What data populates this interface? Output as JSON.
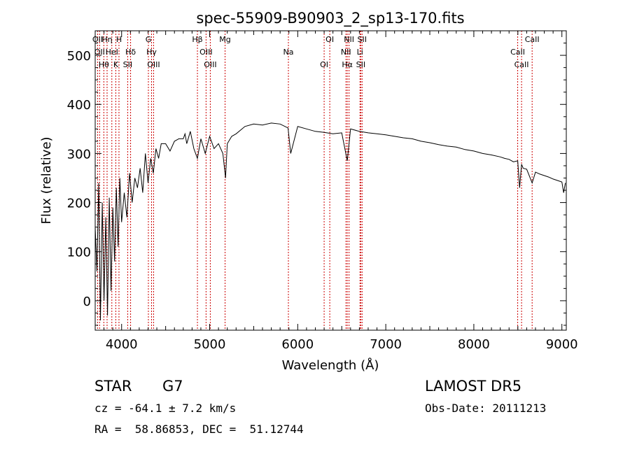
{
  "chart_data": {
    "type": "line",
    "title": "spec-55909-B90903_2_sp13-170.fits",
    "xlabel": "Wavelength (Å)",
    "ylabel": "Flux (relative)",
    "xlim": [
      3700,
      9050
    ],
    "ylim": [
      -60,
      550
    ],
    "x_ticks": [
      4000,
      5000,
      6000,
      7000,
      8000,
      9000
    ],
    "y_ticks": [
      0,
      100,
      200,
      300,
      400,
      500
    ],
    "grid": false,
    "series": [
      {
        "x": [
          3700,
          3720,
          3740,
          3760,
          3780,
          3800,
          3820,
          3840,
          3860,
          3880,
          3900,
          3920,
          3940,
          3960,
          3980,
          4000,
          4030,
          4060,
          4090,
          4120,
          4150,
          4180,
          4210,
          4240,
          4270,
          4300,
          4330,
          4360,
          4390,
          4420,
          4450,
          4500,
          4550,
          4600,
          4650,
          4700,
          4720,
          4740,
          4780,
          4820,
          4861,
          4900,
          4950,
          5000,
          5050,
          5100,
          5150,
          5180,
          5200,
          5250,
          5300,
          5400,
          5500,
          5600,
          5700,
          5800,
          5890,
          5920,
          6000,
          6100,
          6200,
          6300,
          6400,
          6500,
          6563,
          6600,
          6700,
          6800,
          6900,
          7000,
          7100,
          7200,
          7300,
          7400,
          7500,
          7600,
          7700,
          7800,
          7900,
          8000,
          8100,
          8200,
          8300,
          8350,
          8400,
          8450,
          8498,
          8520,
          8542,
          8560,
          8600,
          8662,
          8700,
          8750,
          8800,
          8850,
          8900,
          8950,
          9000,
          9020,
          9040
        ],
        "y": [
          150,
          60,
          240,
          -40,
          200,
          0,
          170,
          -30,
          210,
          20,
          190,
          80,
          230,
          110,
          250,
          160,
          220,
          170,
          260,
          200,
          250,
          230,
          270,
          220,
          300,
          240,
          290,
          260,
          310,
          290,
          320,
          320,
          305,
          325,
          330,
          330,
          340,
          320,
          345,
          310,
          290,
          330,
          300,
          335,
          310,
          320,
          300,
          250,
          320,
          335,
          340,
          355,
          360,
          358,
          362,
          360,
          352,
          300,
          355,
          350,
          345,
          343,
          340,
          342,
          285,
          350,
          345,
          342,
          340,
          338,
          335,
          332,
          330,
          325,
          322,
          318,
          315,
          313,
          308,
          305,
          300,
          297,
          293,
          290,
          288,
          283,
          285,
          230,
          278,
          270,
          268,
          240,
          262,
          258,
          255,
          252,
          248,
          245,
          242,
          220,
          240
        ]
      }
    ],
    "lines": [
      {
        "wavelength": 3727,
        "label": "OII"
      },
      {
        "wavelength": 3750,
        "label": "OII"
      },
      {
        "wavelength": 3798,
        "label": "Hθ"
      },
      {
        "wavelength": 3835,
        "label": "Hη"
      },
      {
        "wavelength": 3889,
        "label": "HeI"
      },
      {
        "wavelength": 3934,
        "label": "K"
      },
      {
        "wavelength": 3970,
        "label": "H"
      },
      {
        "wavelength": 4102,
        "label": "Hδ"
      },
      {
        "wavelength": 4069,
        "label": "SII"
      },
      {
        "wavelength": 4304,
        "label": "G"
      },
      {
        "wavelength": 4340,
        "label": "Hγ"
      },
      {
        "wavelength": 4363,
        "label": "OIII"
      },
      {
        "wavelength": 4861,
        "label": "Hβ"
      },
      {
        "wavelength": 4959,
        "label": "OIII"
      },
      {
        "wavelength": 5007,
        "label": "OIII"
      },
      {
        "wavelength": 5175,
        "label": "Mg"
      },
      {
        "wavelength": 5894,
        "label": "Na"
      },
      {
        "wavelength": 6300,
        "label": "OI"
      },
      {
        "wavelength": 6364,
        "label": "OI"
      },
      {
        "wavelength": 6548,
        "label": "NII"
      },
      {
        "wavelength": 6563,
        "label": "Hα"
      },
      {
        "wavelength": 6583,
        "label": "NII"
      },
      {
        "wavelength": 6707,
        "label": "Li"
      },
      {
        "wavelength": 6716,
        "label": "SII"
      },
      {
        "wavelength": 6731,
        "label": "SII"
      },
      {
        "wavelength": 8498,
        "label": "CaII"
      },
      {
        "wavelength": 8542,
        "label": "CaII"
      },
      {
        "wavelength": 8662,
        "label": "CaII"
      }
    ],
    "line_color": "#cc0000",
    "trace_color": "#000000"
  },
  "info": {
    "class": "STAR",
    "subclass": "G7",
    "survey": "LAMOST DR5",
    "velocity": "cz = -64.1 ± 7.2 km/s",
    "obs_date": "Obs-Date: 20111213",
    "coords": "RA =  58.86853, DEC =  51.12744"
  }
}
